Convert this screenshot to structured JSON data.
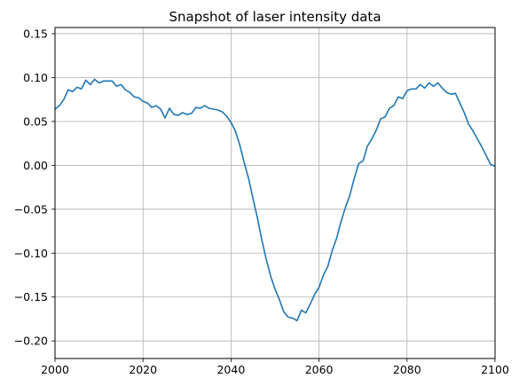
{
  "chart_data": {
    "type": "line",
    "title": "Snapshot of laser intensity data",
    "xlabel": "",
    "ylabel": "",
    "xlim": [
      2000,
      2100
    ],
    "ylim": [
      -0.22,
      0.157
    ],
    "xticks": [
      2000,
      2020,
      2040,
      2060,
      2080,
      2100
    ],
    "yticks": [
      -0.2,
      -0.15,
      -0.1,
      -0.05,
      0.0,
      0.05,
      0.1,
      0.15
    ],
    "xtick_labels": [
      "2000",
      "2020",
      "2040",
      "2060",
      "2080",
      "2100"
    ],
    "ytick_labels": [
      "−0.20",
      "−0.15",
      "−0.10",
      "−0.05",
      "0.00",
      "0.05",
      "0.10",
      "0.15"
    ],
    "grid": true,
    "line_color": "#1f77b4",
    "series": [
      {
        "x": [
          2000,
          2001,
          2002,
          2003,
          2004,
          2005,
          2006,
          2007,
          2008,
          2009,
          2010,
          2011,
          2012,
          2013,
          2014,
          2015,
          2016,
          2017,
          2018,
          2019,
          2020,
          2021,
          2022,
          2023,
          2024,
          2025,
          2026,
          2027,
          2028,
          2029,
          2030,
          2031,
          2032,
          2033,
          2034,
          2035,
          2036,
          2037,
          2038,
          2039,
          2040,
          2041,
          2042,
          2043,
          2044,
          2045,
          2046,
          2047,
          2048,
          2049,
          2050,
          2051,
          2052,
          2053,
          2054,
          2055,
          2056,
          2057,
          2058,
          2059,
          2060,
          2061,
          2062,
          2063,
          2064,
          2065,
          2066,
          2067,
          2068,
          2069,
          2070,
          2071,
          2072,
          2073,
          2074,
          2075,
          2076,
          2077,
          2078,
          2079,
          2080,
          2081,
          2082,
          2083,
          2084,
          2085,
          2086,
          2087,
          2088,
          2089,
          2090,
          2091,
          2092,
          2093,
          2094,
          2095,
          2096,
          2097,
          2098,
          2099,
          2100
        ],
        "values": [
          0.064,
          0.068,
          0.075,
          0.086,
          0.084,
          0.089,
          0.087,
          0.097,
          0.092,
          0.098,
          0.094,
          0.096,
          0.096,
          0.096,
          0.09,
          0.092,
          0.086,
          0.083,
          0.078,
          0.077,
          0.073,
          0.071,
          0.066,
          0.068,
          0.064,
          0.054,
          0.065,
          0.058,
          0.057,
          0.06,
          0.058,
          0.059,
          0.066,
          0.065,
          0.068,
          0.065,
          0.064,
          0.063,
          0.061,
          0.056,
          0.049,
          0.039,
          0.023,
          0.003,
          -0.015,
          -0.038,
          -0.06,
          -0.085,
          -0.107,
          -0.126,
          -0.141,
          -0.153,
          -0.167,
          -0.173,
          -0.174,
          -0.177,
          -0.165,
          -0.168,
          -0.158,
          -0.147,
          -0.139,
          -0.125,
          -0.115,
          -0.097,
          -0.083,
          -0.064,
          -0.048,
          -0.034,
          -0.015,
          0.002,
          0.005,
          0.022,
          0.03,
          0.04,
          0.053,
          0.055,
          0.065,
          0.068,
          0.078,
          0.076,
          0.085,
          0.087,
          0.087,
          0.092,
          0.088,
          0.094,
          0.09,
          0.094,
          0.088,
          0.083,
          0.081,
          0.082,
          0.071,
          0.06,
          0.047,
          0.039,
          0.03,
          0.021,
          0.011,
          0.001,
          -0.001
        ]
      }
    ]
  }
}
